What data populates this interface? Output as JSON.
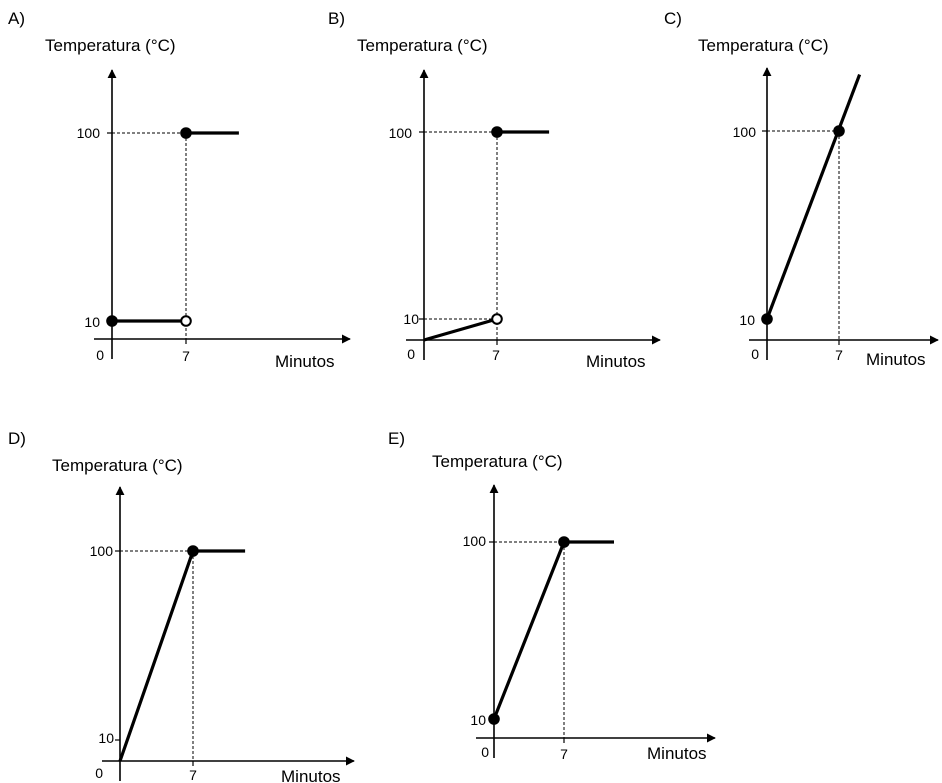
{
  "chart_data": [
    {
      "option": "A)",
      "type": "line",
      "ylabel": "Temperatura (°C)",
      "xlabel": "Minutos",
      "x_ticks": [
        "0",
        "7"
      ],
      "y_ticks": [
        "10",
        "100"
      ],
      "segments": [
        {
          "points": [
            [
              0,
              10
            ],
            [
              7,
              10
            ]
          ]
        },
        {
          "points": [
            [
              7,
              100
            ],
            [
              12,
              100
            ]
          ]
        }
      ],
      "markers": [
        {
          "x": 0,
          "y": 10,
          "filled": true
        },
        {
          "x": 7,
          "y": 10,
          "filled": false
        },
        {
          "x": 7,
          "y": 100,
          "filled": true
        }
      ]
    },
    {
      "option": "B)",
      "type": "line",
      "ylabel": "Temperatura (°C)",
      "xlabel": "Minutos",
      "x_ticks": [
        "0",
        "7"
      ],
      "y_ticks": [
        "10",
        "100"
      ],
      "segments": [
        {
          "points": [
            [
              0,
              0
            ],
            [
              7,
              10
            ]
          ]
        },
        {
          "points": [
            [
              7,
              100
            ],
            [
              12,
              100
            ]
          ]
        }
      ],
      "markers": [
        {
          "x": 7,
          "y": 10,
          "filled": false
        },
        {
          "x": 7,
          "y": 100,
          "filled": true
        }
      ]
    },
    {
      "option": "C)",
      "type": "line",
      "ylabel": "Temperatura (°C)",
      "xlabel": "Minutos",
      "x_ticks": [
        "0",
        "7"
      ],
      "y_ticks": [
        "10",
        "100"
      ],
      "segments": [
        {
          "points": [
            [
              0,
              10
            ],
            [
              9,
              127
            ]
          ]
        }
      ],
      "markers": [
        {
          "x": 0,
          "y": 10,
          "filled": true
        },
        {
          "x": 7,
          "y": 100,
          "filled": true
        }
      ]
    },
    {
      "option": "D)",
      "type": "line",
      "ylabel": "Temperatura (°C)",
      "xlabel": "Minutos",
      "x_ticks": [
        "0",
        "7"
      ],
      "y_ticks": [
        "10",
        "100"
      ],
      "segments": [
        {
          "points": [
            [
              0,
              0
            ],
            [
              7,
              100
            ],
            [
              12,
              100
            ]
          ]
        }
      ],
      "markers": [
        {
          "x": 7,
          "y": 100,
          "filled": true
        }
      ]
    },
    {
      "option": "E)",
      "type": "line",
      "ylabel": "Temperatura (°C)",
      "xlabel": "Minutos",
      "x_ticks": [
        "0",
        "7"
      ],
      "y_ticks": [
        "10",
        "100"
      ],
      "segments": [
        {
          "points": [
            [
              0,
              10
            ],
            [
              7,
              100
            ],
            [
              12,
              100
            ]
          ]
        }
      ],
      "markers": [
        {
          "x": 0,
          "y": 10,
          "filled": true
        },
        {
          "x": 7,
          "y": 100,
          "filled": true
        }
      ]
    }
  ]
}
